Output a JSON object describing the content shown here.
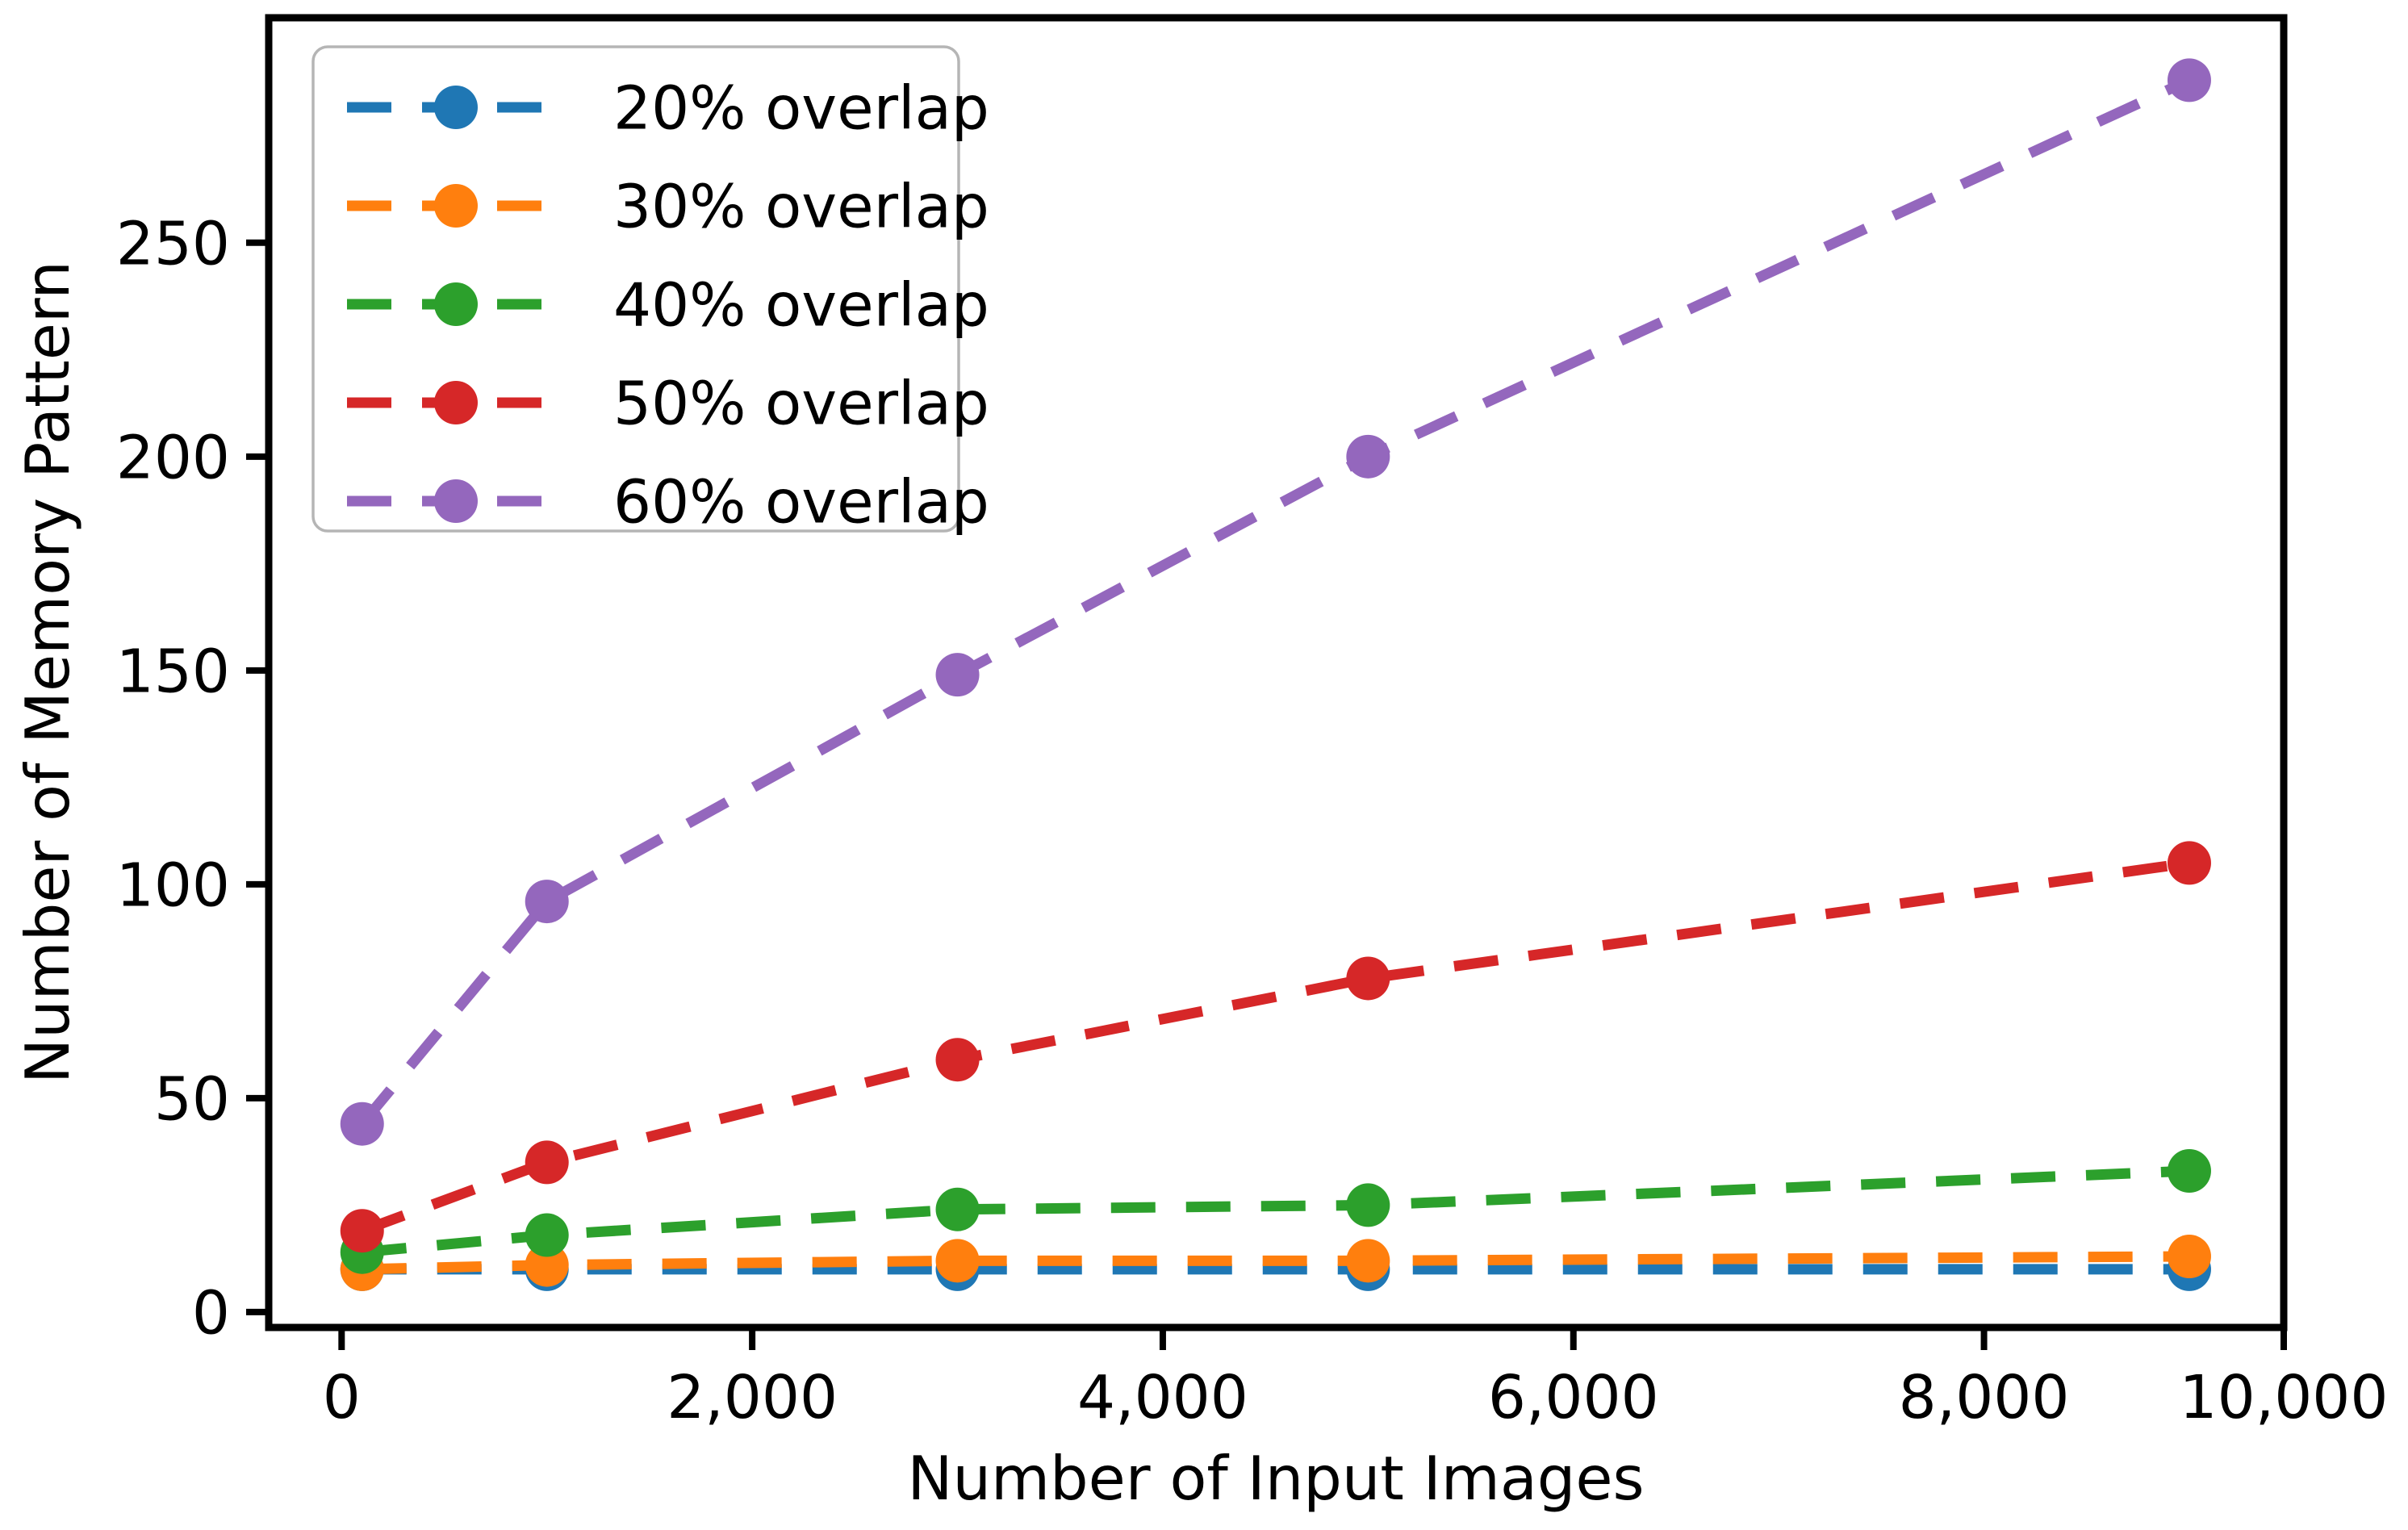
{
  "chart_data": {
    "type": "line",
    "title": "",
    "xlabel": "Number of Input Images",
    "ylabel": "Number of Memory Pattern",
    "x": [
      100,
      1000,
      3000,
      5000,
      9000
    ],
    "series": [
      {
        "name": "20% overlap",
        "color": "#1f77b4",
        "values": [
          10,
          10,
          10,
          10,
          10
        ]
      },
      {
        "name": "30% overlap",
        "color": "#ff7f0e",
        "values": [
          10,
          11,
          12,
          12,
          13
        ]
      },
      {
        "name": "40% overlap",
        "color": "#2ca02c",
        "values": [
          14,
          18,
          24,
          25,
          33
        ]
      },
      {
        "name": "50% overlap",
        "color": "#d62728",
        "values": [
          19,
          35,
          59,
          78,
          105
        ]
      },
      {
        "name": "60% overlap",
        "color": "#9467bd",
        "values": [
          44,
          96,
          149,
          200,
          288
        ]
      }
    ],
    "x_ticks": [
      0,
      2000,
      4000,
      6000,
      8000,
      10000
    ],
    "x_tick_labels": [
      "0",
      "2,000",
      "4,000",
      "6,000",
      "8,000",
      "10,000"
    ],
    "y_ticks": [
      0,
      50,
      100,
      150,
      200,
      250
    ],
    "y_tick_labels": [
      "0",
      "50",
      "100",
      "150",
      "200",
      "250"
    ],
    "xlim": [
      -355,
      9460
    ],
    "ylim": [
      -3.6,
      302.6
    ],
    "grid": false,
    "line_style": "dashed",
    "marker": "circle",
    "legend_position": "upper-left",
    "axis_color": "#000000",
    "legend_edge_color": "#b5b5b5",
    "background_color": "#ffffff"
  }
}
